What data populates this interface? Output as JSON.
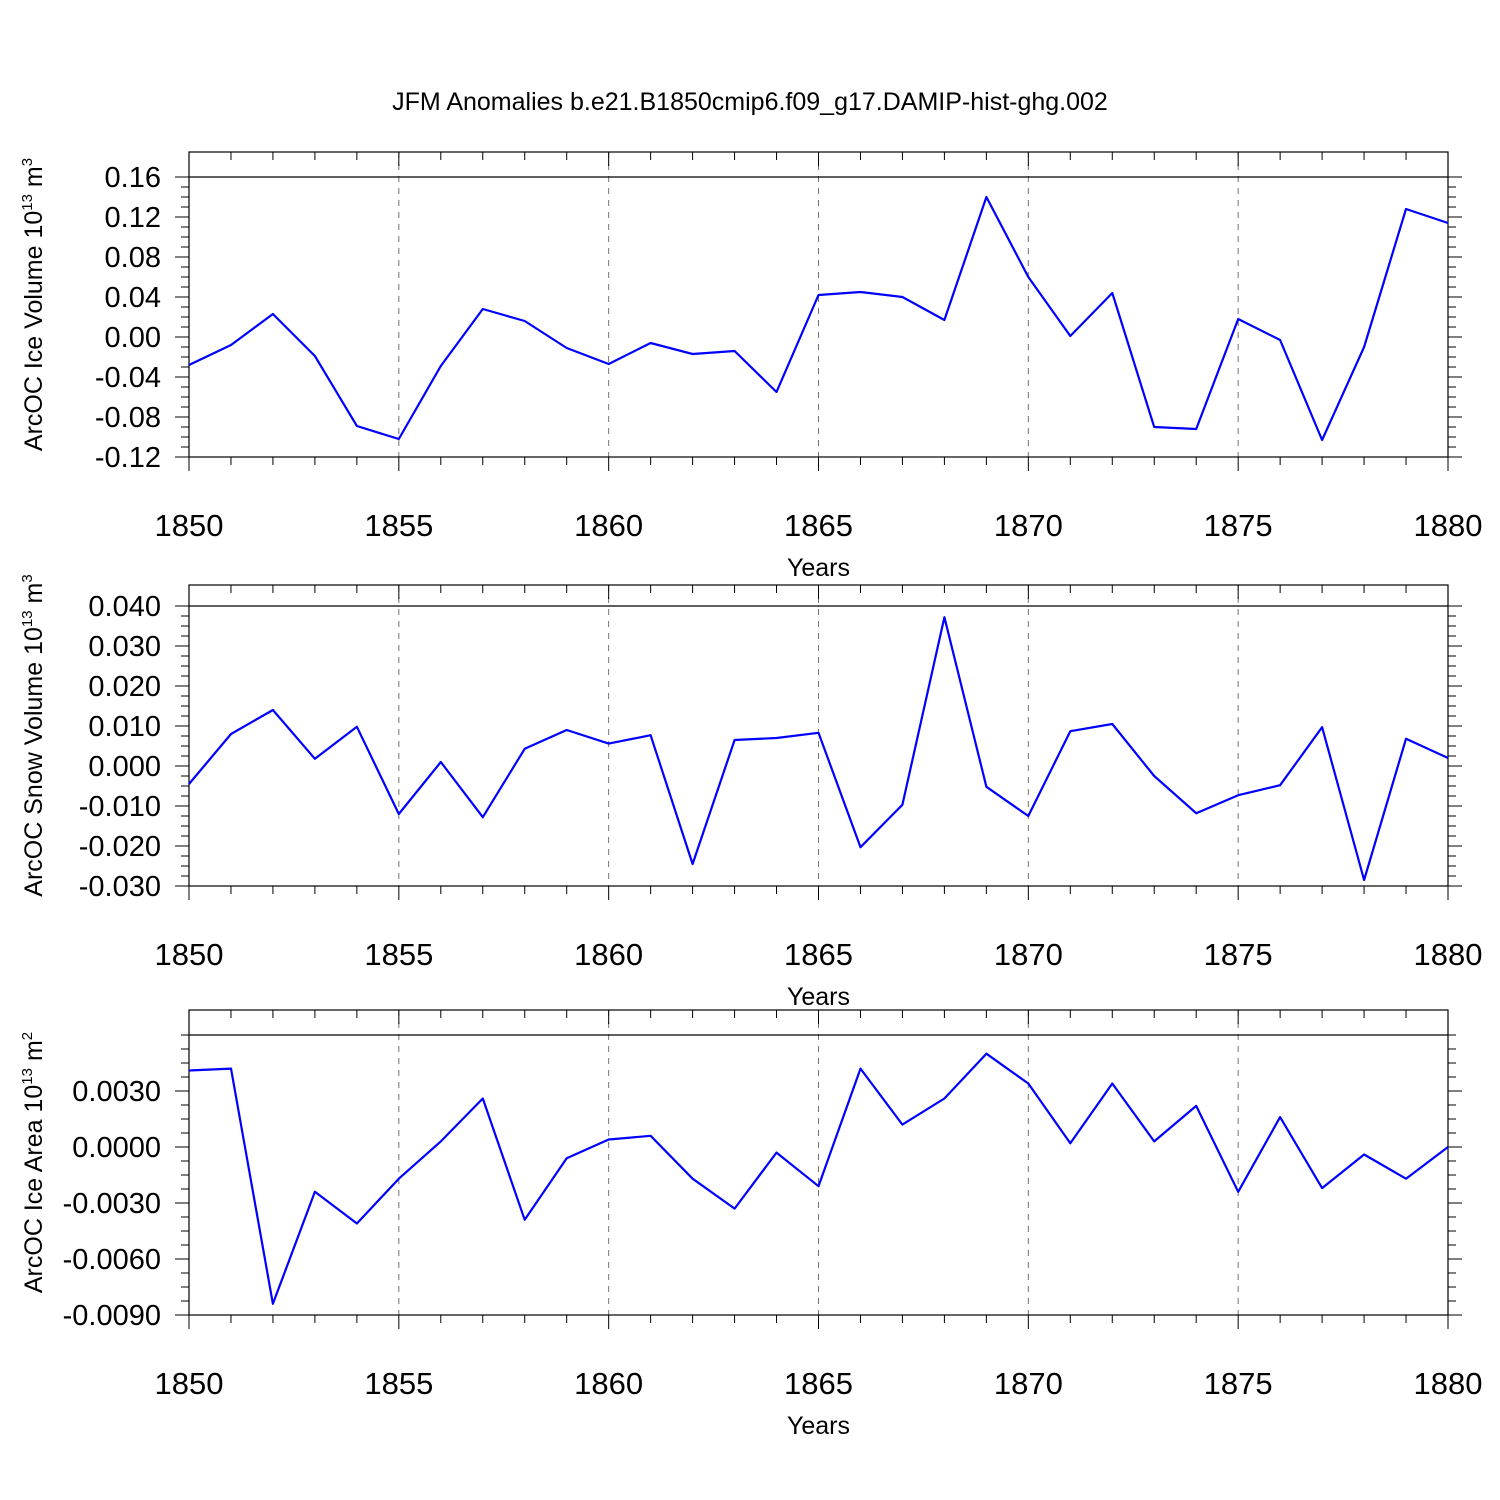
{
  "title": "JFM Anomalies b.e21.B1850cmip6.f09_g17.DAMIP-hist-ghg.002",
  "colors": {
    "series": "#0000ff",
    "axes": "#000000"
  },
  "chart_data": [
    {
      "type": "line",
      "xlabel": "Years",
      "ylabel_main": "ArcOC Ice Volume 10",
      "ylabel_exp": "13",
      "ylabel_unit": " m",
      "ylabel_unit_exp": "3",
      "xlim": [
        1850,
        1880
      ],
      "ylim": [
        -0.12,
        0.16
      ],
      "x_ticks": [
        1850,
        1855,
        1860,
        1865,
        1870,
        1875,
        1880
      ],
      "y_ticks": [
        "-0.12",
        "-0.08",
        "-0.04",
        "0.00",
        "0.04",
        "0.08",
        "0.12",
        "0.16"
      ],
      "grid": "vertical dashed at major x ticks",
      "x": [
        1850,
        1851,
        1852,
        1853,
        1854,
        1855,
        1856,
        1857,
        1858,
        1859,
        1860,
        1861,
        1862,
        1863,
        1864,
        1865,
        1866,
        1867,
        1868,
        1869,
        1870,
        1871,
        1872,
        1873,
        1874,
        1875,
        1876,
        1877,
        1878,
        1879,
        1880
      ],
      "values": [
        -0.028,
        -0.008,
        0.023,
        -0.019,
        -0.089,
        -0.102,
        -0.029,
        0.028,
        0.016,
        -0.011,
        -0.027,
        -0.006,
        -0.017,
        -0.014,
        -0.055,
        0.042,
        0.045,
        0.04,
        0.017,
        0.14,
        0.06,
        0.001,
        0.044,
        -0.09,
        -0.092,
        0.018,
        -0.003,
        -0.103,
        -0.01,
        0.128,
        0.114
      ]
    },
    {
      "type": "line",
      "xlabel": "Years",
      "ylabel_main": "ArcOC Snow Volume 10",
      "ylabel_exp": "13",
      "ylabel_unit": " m",
      "ylabel_unit_exp": "3",
      "xlim": [
        1850,
        1880
      ],
      "ylim": [
        -0.03,
        0.04
      ],
      "x_ticks": [
        1850,
        1855,
        1860,
        1865,
        1870,
        1875,
        1880
      ],
      "y_ticks": [
        "-0.030",
        "-0.020",
        "-0.010",
        "0.000",
        "0.010",
        "0.020",
        "0.030",
        "0.040"
      ],
      "grid": "vertical dashed at major x ticks",
      "x": [
        1850,
        1851,
        1852,
        1853,
        1854,
        1855,
        1856,
        1857,
        1858,
        1859,
        1860,
        1861,
        1862,
        1863,
        1864,
        1865,
        1866,
        1867,
        1868,
        1869,
        1870,
        1871,
        1872,
        1873,
        1874,
        1875,
        1876,
        1877,
        1878,
        1879,
        1880
      ],
      "values": [
        -0.0045,
        0.008,
        0.014,
        0.0018,
        0.0098,
        -0.012,
        0.001,
        -0.0128,
        0.0043,
        0.009,
        0.0056,
        0.0077,
        -0.0245,
        0.0065,
        0.007,
        0.0083,
        -0.0203,
        -0.0097,
        0.0372,
        -0.0052,
        -0.0125,
        0.0087,
        0.0105,
        -0.0025,
        -0.0118,
        -0.0073,
        -0.0048,
        0.0097,
        -0.0285,
        0.0068,
        0.002
      ]
    },
    {
      "type": "line",
      "xlabel": "Years",
      "ylabel_main": "ArcOC Ice Area 10",
      "ylabel_exp": "13",
      "ylabel_unit": " m",
      "ylabel_unit_exp": "2",
      "xlim": [
        1850,
        1880
      ],
      "ylim": [
        -0.009,
        0.006
      ],
      "x_ticks": [
        1850,
        1855,
        1860,
        1865,
        1870,
        1875,
        1880
      ],
      "y_ticks": [
        "-0.0090",
        "-0.0060",
        "-0.0030",
        "0.0000",
        "0.0030"
      ],
      "grid": "vertical dashed at major x ticks",
      "x": [
        1850,
        1851,
        1852,
        1853,
        1854,
        1855,
        1856,
        1857,
        1858,
        1859,
        1860,
        1861,
        1862,
        1863,
        1864,
        1865,
        1866,
        1867,
        1868,
        1869,
        1870,
        1871,
        1872,
        1873,
        1874,
        1875,
        1876,
        1877,
        1878,
        1879,
        1880
      ],
      "values": [
        0.0041,
        0.0042,
        -0.0084,
        -0.0024,
        -0.0041,
        -0.0017,
        0.0003,
        0.0026,
        -0.0039,
        -0.0006,
        0.0004,
        0.0006,
        -0.0017,
        -0.0033,
        -0.0003,
        -0.0021,
        0.0042,
        0.0012,
        0.0026,
        0.005,
        0.0034,
        0.0002,
        0.0034,
        0.0003,
        0.0022,
        -0.0024,
        0.0016,
        -0.0022,
        -0.0004,
        -0.0017,
        0.0
      ]
    }
  ]
}
